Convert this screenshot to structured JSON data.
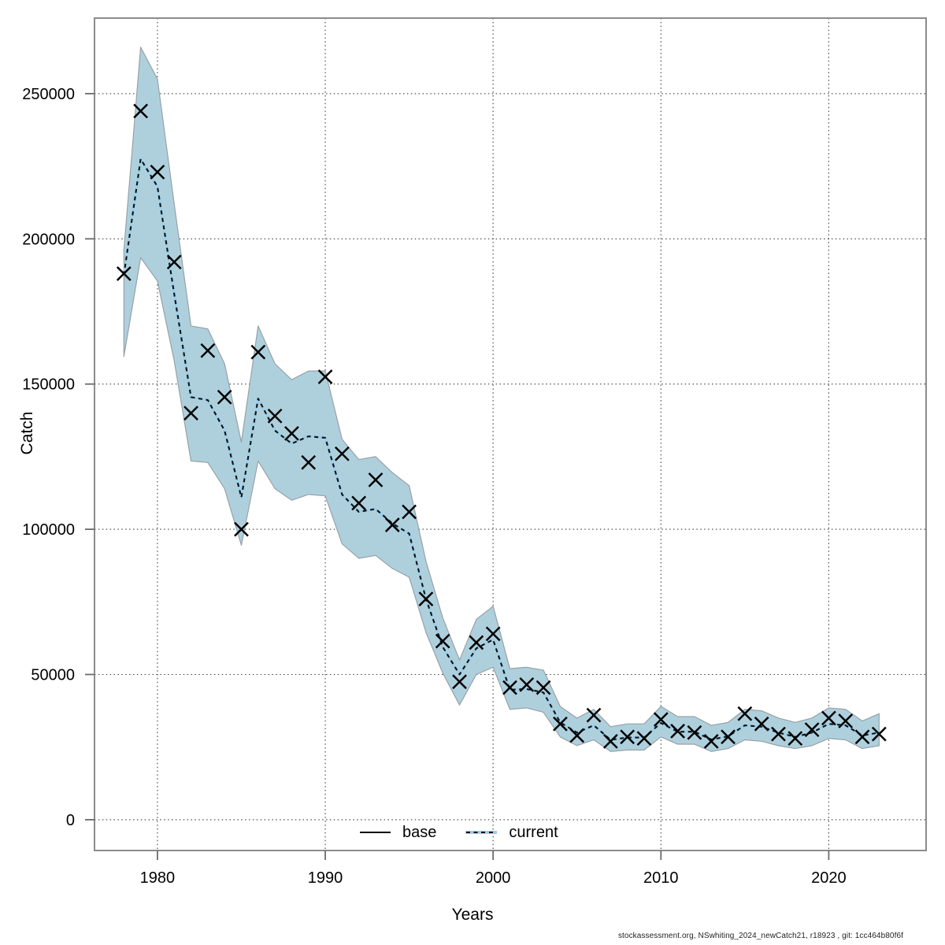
{
  "chart_data": {
    "type": "line",
    "title": "",
    "xlabel": "Years",
    "ylabel": "Catch",
    "xlim": [
      1976.25,
      2025.8
    ],
    "ylim": [
      -10600,
      276000
    ],
    "x_ticks": [
      1980,
      1990,
      2000,
      2010,
      2020
    ],
    "y_ticks": [
      0,
      50000,
      100000,
      150000,
      200000,
      250000
    ],
    "grid": "dotted",
    "legend": {
      "position": "bottom-center",
      "entries": [
        {
          "label": "base",
          "swatch": "solid-black-line"
        },
        {
          "label": "current",
          "swatch": "blue-dashed-line"
        }
      ]
    },
    "x": [
      1978,
      1979,
      1980,
      1981,
      1982,
      1983,
      1984,
      1985,
      1986,
      1987,
      1988,
      1989,
      1990,
      1991,
      1992,
      1993,
      1994,
      1995,
      1996,
      1997,
      1998,
      1999,
      2000,
      2001,
      2002,
      2003,
      2004,
      2005,
      2006,
      2007,
      2008,
      2009,
      2010,
      2011,
      2012,
      2013,
      2014,
      2015,
      2016,
      2017,
      2018,
      2019,
      2020,
      2021,
      2022,
      2023
    ],
    "series": [
      {
        "name": "observed-catch",
        "style": "x-markers",
        "color": "#000000",
        "values": [
          188000,
          244000,
          223000,
          192000,
          140000,
          161500,
          145500,
          100000,
          161000,
          139000,
          133000,
          123000,
          152500,
          126000,
          109000,
          117000,
          101500,
          106000,
          76000,
          61500,
          47500,
          61000,
          64000,
          45500,
          46500,
          45500,
          33000,
          29000,
          36000,
          27000,
          28500,
          28000,
          34500,
          30500,
          30000,
          27000,
          28500,
          36500,
          33000,
          29500,
          28000,
          31000,
          35000,
          34000,
          28500,
          29500
        ]
      },
      {
        "name": "base",
        "style": "solid-line",
        "color": "#000000",
        "values": [
          187500,
          227500,
          218000,
          181000,
          145500,
          144500,
          134000,
          111000,
          145000,
          134000,
          129500,
          132000,
          131500,
          112000,
          106000,
          107000,
          102000,
          98500,
          76000,
          59500,
          50000,
          59000,
          62000,
          44750,
          45000,
          43800,
          33500,
          30000,
          32500,
          27500,
          28300,
          28300,
          33300,
          30300,
          30300,
          27600,
          28700,
          32500,
          32000,
          30000,
          28500,
          30000,
          33000,
          32500,
          29000,
          30000
        ]
      },
      {
        "name": "current",
        "style": "dashed-line",
        "color": "#9bcfe8",
        "dash_color": "#111111",
        "values": [
          187500,
          227500,
          218000,
          181000,
          145500,
          144500,
          134000,
          111000,
          145000,
          134000,
          129500,
          132000,
          131500,
          112000,
          106000,
          107000,
          102000,
          98500,
          76000,
          59500,
          50000,
          59000,
          62000,
          44750,
          45000,
          43800,
          33500,
          30000,
          32500,
          27500,
          28300,
          28300,
          33300,
          30300,
          30300,
          27600,
          28700,
          32500,
          32000,
          30000,
          28500,
          30000,
          33000,
          32500,
          29000,
          30000
        ],
        "band": {
          "fill": "#aed0dd",
          "edge": "#97a1a7",
          "lower": [
            159500,
            193500,
            185500,
            158000,
            123500,
            123000,
            114000,
            94500,
            123500,
            114000,
            110000,
            112000,
            111500,
            95000,
            90000,
            91000,
            86500,
            83500,
            64500,
            50500,
            39500,
            50000,
            52500,
            38000,
            38500,
            37000,
            28500,
            25500,
            27500,
            23500,
            24000,
            24000,
            28500,
            26000,
            26000,
            23500,
            24500,
            27500,
            27000,
            25500,
            24500,
            25500,
            28000,
            27500,
            24500,
            25500
          ],
          "upper": [
            196000,
            266000,
            255000,
            212000,
            170000,
            169000,
            157000,
            130000,
            170000,
            157000,
            151500,
            154500,
            154500,
            131000,
            124000,
            125000,
            119500,
            115000,
            89000,
            69500,
            55000,
            69000,
            73500,
            52000,
            52500,
            51500,
            39000,
            35000,
            38000,
            32000,
            33000,
            33000,
            39000,
            35500,
            35500,
            32500,
            33500,
            38000,
            37500,
            35000,
            33500,
            35000,
            38500,
            38000,
            34000,
            36500
          ]
        }
      }
    ]
  },
  "footer": {
    "text": "stockassessment.org, NSwhiting_2024_newCatch21, r18923 , git: 1cc464b80f6f"
  },
  "colors": {
    "background": "#ffffff",
    "plot_border": "#8c8c8c",
    "gridline": "#3d3d3d",
    "tick": "#6b6b6b",
    "band_fill": "#aed0dd",
    "band_edge": "#97a1a7",
    "current_line_blue": "#9bcfe8",
    "base_line_black": "#000000"
  }
}
